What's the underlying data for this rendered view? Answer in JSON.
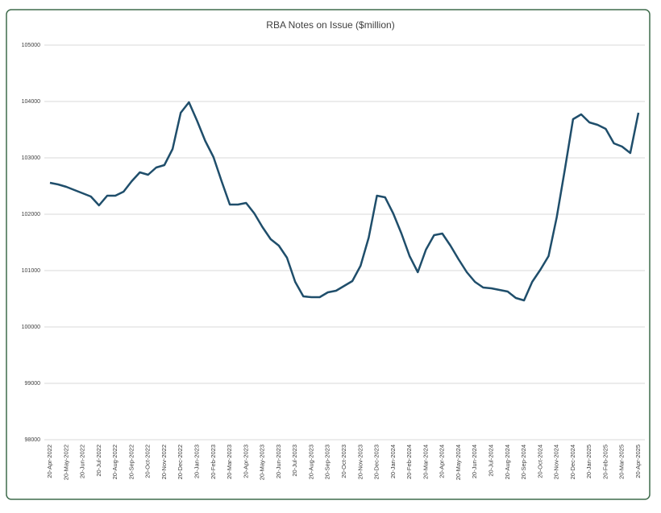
{
  "chart_data": {
    "type": "line",
    "title": "RBA Notes on Issue ($million)",
    "categories": [
      "20-Apr-2022",
      null,
      "20-May-2022",
      null,
      "20-Jun-2022",
      null,
      "20-Jul-2022",
      null,
      "20-Aug-2022",
      null,
      "20-Sep-2022",
      null,
      "20-Oct-2022",
      null,
      "20-Nov-2022",
      null,
      "20-Dec-2022",
      null,
      "20-Jan-2023",
      null,
      "20-Feb-2023",
      null,
      "20-Mar-2023",
      null,
      "20-Apr-2023",
      null,
      "20-May-2023",
      null,
      "20-Jun-2023",
      null,
      "20-Jul-2023",
      null,
      "20-Aug-2023",
      null,
      "20-Sep-2023",
      null,
      "20-Oct-2023",
      null,
      "20-Nov-2023",
      null,
      "20-Dec-2023",
      null,
      "20-Jan-2024",
      null,
      "20-Feb-2024",
      null,
      "20-Mar-2024",
      null,
      "20-Apr-2024",
      null,
      "20-May-2024",
      null,
      "20-Jun-2024",
      null,
      "20-Jul-2024",
      null,
      "20-Aug-2024",
      null,
      "20-Sep-2024",
      null,
      "20-Oct-2024",
      null,
      "20-Nov-2024",
      null,
      "20-Dec-2024",
      null,
      "20-Jan-2025",
      null,
      "20-Feb-2025",
      null,
      "20-Mar-2025",
      null,
      "20-Apr-2025"
    ],
    "series": [
      {
        "name": "RBA Notes on Issue",
        "color": "#1f4e6b",
        "values": [
          102557,
          102529,
          102486,
          102429,
          102371,
          102314,
          102157,
          102329,
          102329,
          102400,
          102586,
          102743,
          102700,
          102829,
          102871,
          103157,
          103800,
          103986,
          103657,
          103300,
          103014,
          102586,
          102171,
          102171,
          102200,
          102014,
          101771,
          101557,
          101443,
          101229,
          100800,
          100543,
          100529,
          100529,
          100614,
          100643,
          100729,
          100814,
          101086,
          101586,
          102329,
          102300,
          102014,
          101657,
          101257,
          100971,
          101371,
          101629,
          101657,
          101443,
          101200,
          100971,
          100800,
          100700,
          100686,
          100657,
          100629,
          100514,
          100471,
          100800,
          101014,
          101257,
          101943,
          102800,
          103686,
          103771,
          103629,
          103586,
          103514,
          103257,
          103200,
          103086,
          103800
        ]
      }
    ],
    "ylim": [
      98000,
      105000
    ],
    "yticks": [
      98000,
      99000,
      100000,
      101000,
      102000,
      103000,
      104000,
      105000
    ],
    "grid": true
  }
}
